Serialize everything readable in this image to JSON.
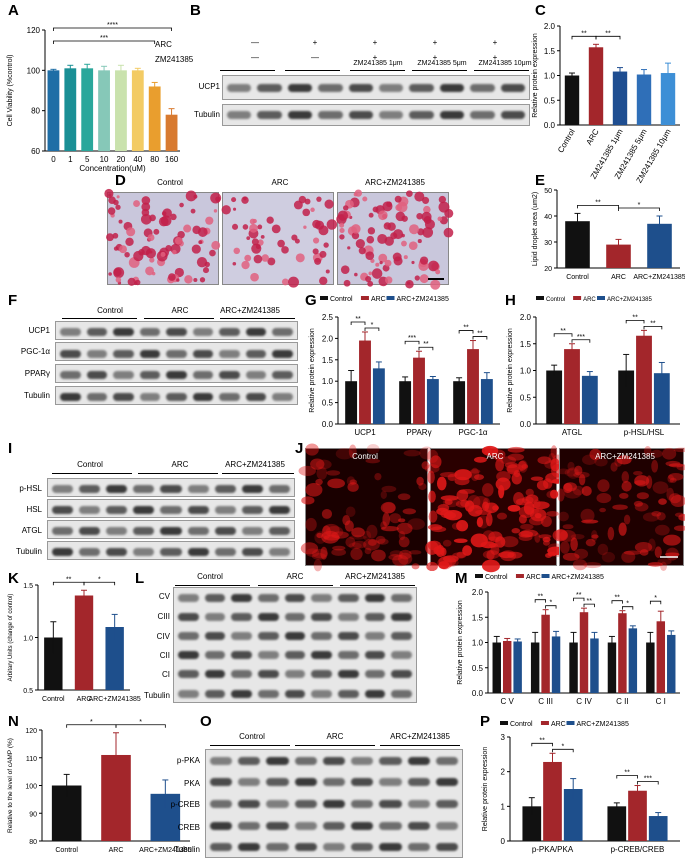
{
  "panels": [
    "A",
    "B",
    "C",
    "D",
    "E",
    "F",
    "G",
    "H",
    "I",
    "J",
    "K",
    "L",
    "M",
    "N",
    "O",
    "P"
  ],
  "colors": {
    "control": "#111111",
    "arc": "#a3262b",
    "zm": "#1e4f8c",
    "A_bars": [
      "#1f6ea6",
      "#1a8f95",
      "#2aa79b",
      "#86c8b8",
      "#c9e2ad",
      "#f3cb64",
      "#e99e2e",
      "#d87a2f",
      "#b7472f"
    ],
    "C_bars": [
      "#111111",
      "#a3262b",
      "#1f4e91",
      "#2f6fb8",
      "#3d8fd6"
    ]
  },
  "blots": {
    "B": {
      "header_rows": [
        {
          "name": "ARC",
          "marks": [
            "—",
            "+",
            "+",
            "+",
            "+"
          ]
        },
        {
          "name": "ZM241385",
          "marks": [
            "—",
            "—",
            "+",
            "+",
            "+"
          ]
        }
      ],
      "group_labels": [
        "ZM241385 1μm",
        "ZM241385 5μm",
        "ZM241385 10μm"
      ],
      "rows": [
        "UCP1",
        "Tubulin"
      ]
    },
    "F": {
      "groups": [
        "Control",
        "ARC",
        "ARC+ZM241385"
      ],
      "rows": [
        "UCP1",
        "PGC-1α",
        "PPARγ",
        "Tubulin"
      ]
    },
    "I": {
      "groups": [
        "Control",
        "ARC",
        "ARC+ZM241385"
      ],
      "rows": [
        "p-HSL",
        "HSL",
        "ATGL",
        "Tubulin"
      ]
    },
    "L": {
      "groups": [
        "Control",
        "ARC",
        "ARC+ZM241385"
      ],
      "rows": [
        "CV",
        "CIII",
        "CIV",
        "CII",
        "CI",
        "Tubulin"
      ]
    },
    "O": {
      "groups": [
        "Control",
        "ARC",
        "ARC+ZM241385"
      ],
      "rows": [
        "p-PKA",
        "PKA",
        "p-CREB",
        "CREB",
        "Tubulin"
      ]
    }
  },
  "images": {
    "D": {
      "labels": [
        "Control",
        "ARC",
        "ARC+ZM241385"
      ]
    },
    "J": {
      "labels": [
        "Control",
        "ARC",
        "ARC+ZM241385"
      ]
    }
  },
  "chart_data": [
    {
      "panel": "A",
      "type": "bar",
      "categories": [
        "0",
        "1",
        "5",
        "10",
        "20",
        "40",
        "80",
        "160"
      ],
      "values": [
        100,
        101,
        101,
        100,
        100,
        100,
        92,
        78
      ],
      "errors": [
        0.5,
        1.5,
        2,
        2,
        2.5,
        1,
        2,
        3
      ],
      "xlabel": "Concentration(uM)",
      "ylabel": "Cell Viability (%control)",
      "ylim": [
        60,
        120
      ],
      "yticks": [
        "60",
        "80",
        "100",
        "120"
      ],
      "significance": [
        {
          "pair": [
            "0",
            "160"
          ],
          "label": "****"
        },
        {
          "pair": [
            "0",
            "80"
          ],
          "label": "***"
        }
      ]
    },
    {
      "panel": "C",
      "type": "bar",
      "categories": [
        "Control",
        "ARC",
        "ZM241385 1μm",
        "ZM241385 5μm",
        "ZM241385 10μm"
      ],
      "values": [
        1.0,
        1.57,
        1.08,
        1.02,
        1.05
      ],
      "errors": [
        0.05,
        0.06,
        0.08,
        0.1,
        0.2
      ],
      "ylabel": "Relative protein expression",
      "ylim": [
        0.0,
        2.0
      ],
      "yticks": [
        "0.0",
        "0.5",
        "1.0",
        "1.5",
        "2.0"
      ],
      "significance": [
        {
          "pair": [
            "Control",
            "ARC"
          ],
          "label": "**"
        },
        {
          "pair": [
            "ARC",
            "ZM241385 1μm"
          ],
          "label": "**"
        }
      ]
    },
    {
      "panel": "E",
      "type": "bar",
      "categories": [
        "Control",
        "ARC",
        "ARC+ZM241385"
      ],
      "values": [
        38,
        29,
        37
      ],
      "errors": [
        3,
        2,
        3
      ],
      "ylabel": "Lipid droplet area (um2)",
      "ylim": [
        20,
        50
      ],
      "yticks": [
        "20",
        "30",
        "40",
        "50"
      ],
      "significance": [
        {
          "pair": [
            "Control",
            "ARC"
          ],
          "label": "**"
        },
        {
          "pair": [
            "ARC",
            "ARC+ZM241385"
          ],
          "label": "*"
        }
      ]
    },
    {
      "panel": "G",
      "type": "bar",
      "categories": [
        "UCP1",
        "PPARγ",
        "PGC-1α"
      ],
      "series": [
        {
          "name": "Control",
          "values": [
            1.0,
            1.0,
            1.0
          ],
          "errors": [
            0.25,
            0.1,
            0.08
          ]
        },
        {
          "name": "ARC",
          "values": [
            1.95,
            1.55,
            1.75
          ],
          "errors": [
            0.2,
            0.15,
            0.2
          ]
        },
        {
          "name": "ARC+ZM241385",
          "values": [
            1.3,
            1.05,
            1.05
          ],
          "errors": [
            0.15,
            0.06,
            0.15
          ]
        }
      ],
      "ylabel": "Relative protein expression",
      "ylim": [
        0.0,
        2.5
      ],
      "yticks": [
        "0.0",
        "0.5",
        "1.0",
        "1.5",
        "2.0",
        "2.5"
      ],
      "significance": [
        {
          "group": "UCP1",
          "labels": [
            "**",
            "*"
          ]
        },
        {
          "group": "PPARγ",
          "labels": [
            "***",
            "**"
          ]
        },
        {
          "group": "PGC-1α",
          "labels": [
            "**",
            "**"
          ]
        }
      ]
    },
    {
      "panel": "H",
      "type": "bar",
      "categories": [
        "ATGL",
        "p-HSL/HSL"
      ],
      "series": [
        {
          "name": "Control",
          "values": [
            1.0,
            1.0
          ],
          "errors": [
            0.1,
            0.3
          ]
        },
        {
          "name": "ARC",
          "values": [
            1.4,
            1.65
          ],
          "errors": [
            0.1,
            0.1
          ]
        },
        {
          "name": "ARC+ZM241385",
          "values": [
            0.9,
            0.95
          ],
          "errors": [
            0.08,
            0.2
          ]
        }
      ],
      "ylabel": "Relative protein expression",
      "ylim": [
        0.0,
        2.0
      ],
      "yticks": [
        "0.0",
        "0.5",
        "1.0",
        "1.5",
        "2.0"
      ],
      "significance": [
        {
          "group": "ATGL",
          "labels": [
            "**",
            "***"
          ]
        },
        {
          "group": "p-HSL/HSL",
          "labels": [
            "**",
            "**"
          ]
        }
      ]
    },
    {
      "panel": "K",
      "type": "bar",
      "categories": [
        "Control",
        "ARC",
        "ARC+ZM241385"
      ],
      "values": [
        1.0,
        1.4,
        1.1
      ],
      "errors": [
        0.15,
        0.05,
        0.12
      ],
      "ylabel": "Arbitary Units (change of control)",
      "ylim": [
        0.5,
        1.5
      ],
      "yticks": [
        "0.5",
        "1.0",
        "1.5"
      ],
      "significance": [
        {
          "pair": [
            "Control",
            "ARC"
          ],
          "label": "**"
        },
        {
          "pair": [
            "ARC",
            "ARC+ZM241385"
          ],
          "label": "*"
        }
      ]
    },
    {
      "panel": "M",
      "type": "bar",
      "categories": [
        "C V",
        "C III",
        "C IV",
        "C II",
        "C I"
      ],
      "series": [
        {
          "name": "Control",
          "values": [
            1.0,
            1.0,
            1.0,
            1.0,
            1.0
          ],
          "errors": [
            0.12,
            0.2,
            0.2,
            0.12,
            0.2
          ]
        },
        {
          "name": "ARC",
          "values": [
            1.03,
            1.55,
            1.6,
            1.58,
            1.42
          ],
          "errors": [
            0.05,
            0.1,
            0.08,
            0.05,
            0.2
          ]
        },
        {
          "name": "ARC+ZM241385",
          "values": [
            1.02,
            1.12,
            1.08,
            1.28,
            1.15
          ],
          "errors": [
            0.05,
            0.1,
            0.12,
            0.05,
            0.08
          ]
        }
      ],
      "ylabel": "Relative protein expression",
      "ylim": [
        0.0,
        2.0
      ],
      "yticks": [
        "0.0",
        "0.5",
        "1.0",
        "1.5",
        "2.0"
      ],
      "significance": [
        {
          "group": "C III",
          "labels": [
            "**",
            "*"
          ]
        },
        {
          "group": "C IV",
          "labels": [
            "**",
            "**"
          ]
        },
        {
          "group": "C II",
          "labels": [
            "**",
            "*"
          ]
        },
        {
          "group": "C I",
          "labels": [
            "*"
          ]
        }
      ]
    },
    {
      "panel": "N",
      "type": "bar",
      "categories": [
        "Control",
        "ARC",
        "ARC+ZM241385"
      ],
      "values": [
        100,
        111,
        97
      ],
      "errors": [
        4,
        8,
        5
      ],
      "ylabel": "Relative to the level of cAMP (%)",
      "ylim": [
        80,
        120
      ],
      "yticks": [
        "80",
        "90",
        "100",
        "110",
        "120"
      ],
      "significance": [
        {
          "pair": [
            "Control",
            "ARC"
          ],
          "label": "*"
        },
        {
          "pair": [
            "ARC",
            "ARC+ZM241385"
          ],
          "label": "*"
        }
      ]
    },
    {
      "panel": "P",
      "type": "bar",
      "categories": [
        "p-PKA/PKA",
        "p-CREB/CREB"
      ],
      "series": [
        {
          "name": "Control",
          "values": [
            1.0,
            1.0
          ],
          "errors": [
            0.25,
            0.1
          ]
        },
        {
          "name": "ARC",
          "values": [
            2.28,
            1.45
          ],
          "errors": [
            0.25,
            0.15
          ]
        },
        {
          "name": "ARC+ZM241385",
          "values": [
            1.5,
            0.72
          ],
          "errors": [
            0.3,
            0.1
          ]
        }
      ],
      "ylabel": "Relative protein expression",
      "ylim": [
        0,
        3
      ],
      "yticks": [
        "0",
        "1",
        "2",
        "3"
      ],
      "significance": [
        {
          "group": "p-PKA/PKA",
          "labels": [
            "**",
            "*"
          ]
        },
        {
          "group": "p-CREB/CREB",
          "labels": [
            "**",
            "***"
          ]
        }
      ]
    }
  ]
}
